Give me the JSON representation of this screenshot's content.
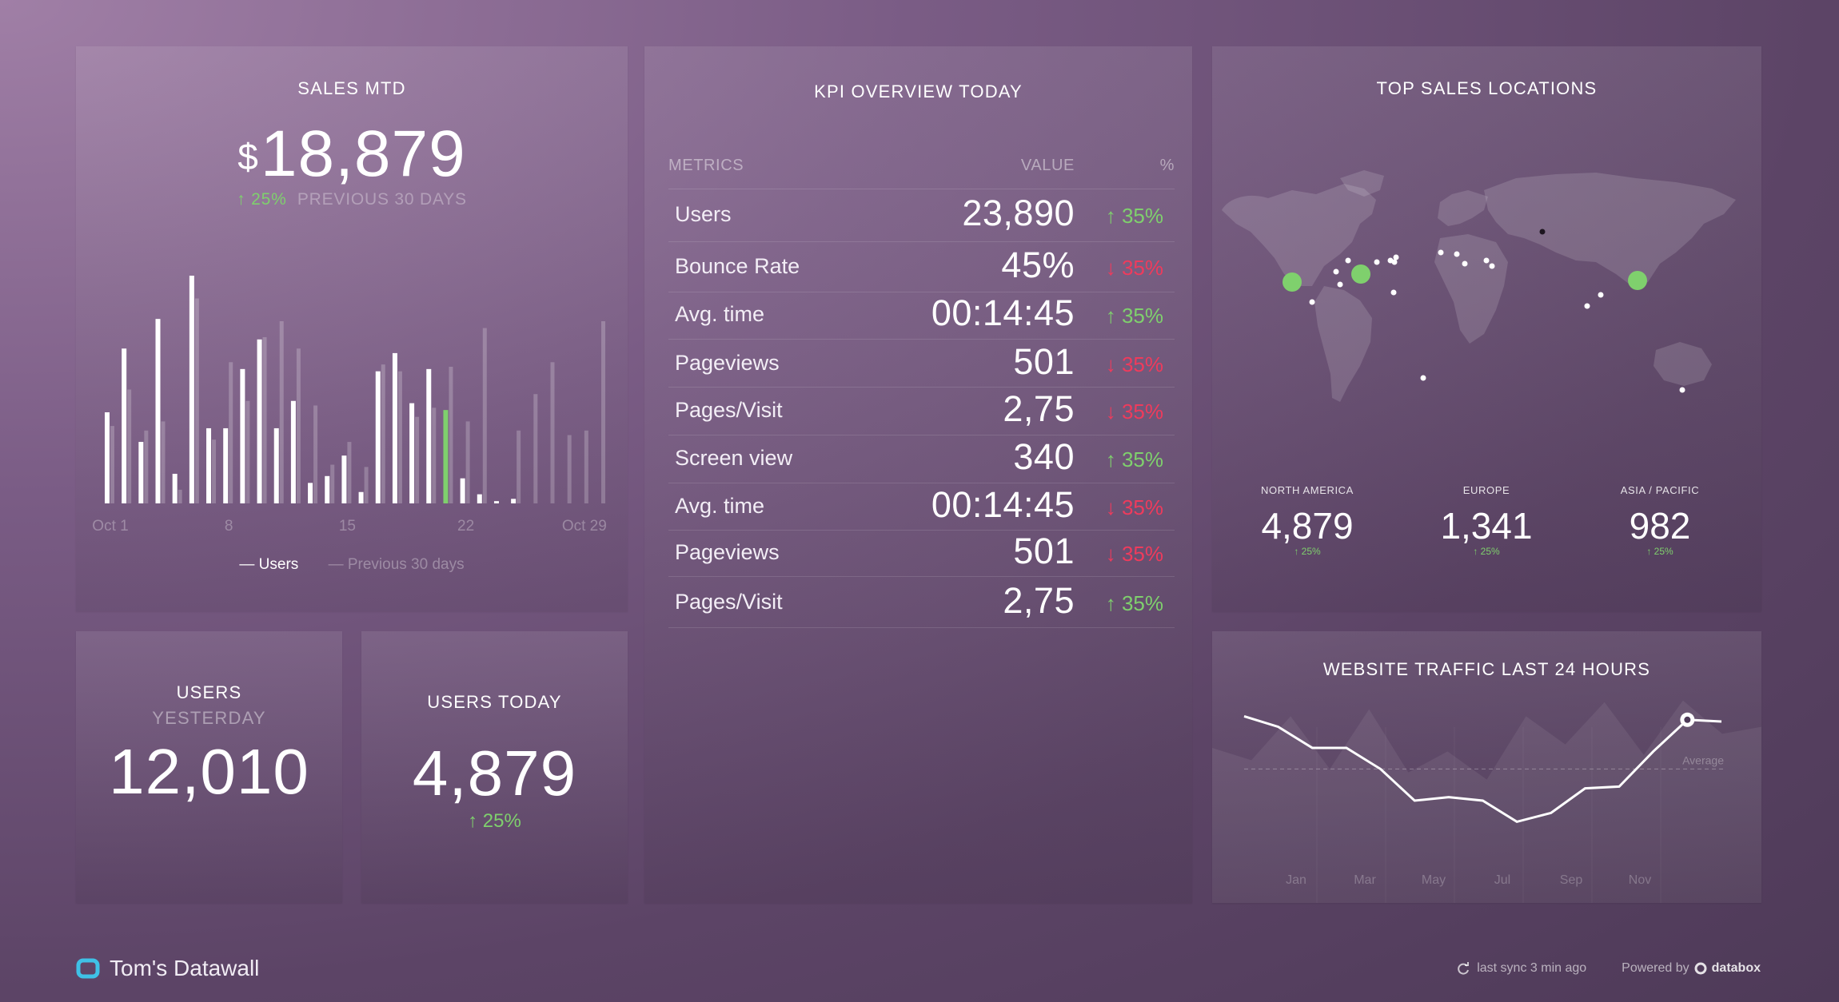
{
  "sales": {
    "title": "SALES MTD",
    "currency": "$",
    "value": "18,879",
    "change": "↑ 25%",
    "compare_label": "PREVIOUS 30 DAYS",
    "legend_users": "— Users",
    "legend_prev": "— Previous 30 days"
  },
  "kpi": {
    "title": "KPI OVERVIEW TODAY",
    "col_metrics": "METRICS",
    "col_value": "VALUE",
    "col_pct": "%",
    "rows": [
      {
        "label": "Users",
        "value": "23,890",
        "change": "↑ 35%",
        "trend": "up"
      },
      {
        "label": "Bounce Rate",
        "value": "45%",
        "change": "↓ 35%",
        "trend": "down"
      },
      {
        "label": "Avg. time",
        "value": "00:14:45",
        "change": "↑ 35%",
        "trend": "up"
      },
      {
        "label": "Pageviews",
        "value": "501",
        "change": "↓ 35%",
        "trend": "down"
      },
      {
        "label": "Pages/Visit",
        "value": "2,75",
        "change": "↓ 35%",
        "trend": "down"
      },
      {
        "label": "Screen view",
        "value": "340",
        "change": "↑ 35%",
        "trend": "up"
      },
      {
        "label": "Avg. time",
        "value": "00:14:45",
        "change": "↓ 35%",
        "trend": "down"
      },
      {
        "label": "Pageviews",
        "value": "501",
        "change": "↓ 35%",
        "trend": "down"
      },
      {
        "label": "Pages/Visit",
        "value": "2,75",
        "change": "↑ 35%",
        "trend": "up"
      }
    ]
  },
  "locations": {
    "title": "TOP SALES LOCATIONS",
    "regions": [
      {
        "name": "NORTH AMERICA",
        "value": "4,879",
        "change": "↑ 25%"
      },
      {
        "name": "EUROPE",
        "value": "1,341",
        "change": "↑ 25%"
      },
      {
        "name": "ASIA / PACIFIC",
        "value": "982",
        "change": "↑ 25%"
      }
    ]
  },
  "users_yesterday": {
    "title_1": "USERS",
    "title_2": "YESTERDAY",
    "value": "12,010"
  },
  "users_today": {
    "title": "USERS TODAY",
    "value": "4,879",
    "change": "↑ 25%"
  },
  "traffic": {
    "title": "WEBSITE TRAFFIC LAST 24 HOURS",
    "average_label": "Average"
  },
  "footer": {
    "brand": "Tom's Datawall",
    "sync": "last sync 3 min ago",
    "powered": "Powered by",
    "vendor": "databox"
  },
  "colors": {
    "green": "#7fd06d",
    "red": "#ef3b5c",
    "bar_highlight": "#7fd06d"
  },
  "chart_data": [
    {
      "type": "bar",
      "title": "SALES MTD",
      "x_tick_labels": [
        "Oct 1",
        "8",
        "15",
        "22",
        "Oct 29"
      ],
      "ylim": [
        0,
        100
      ],
      "series": [
        {
          "name": "Users",
          "values": [
            40,
            68,
            27,
            81,
            13,
            100,
            33,
            33,
            59,
            72,
            33,
            45,
            9,
            12,
            21,
            5,
            58,
            66,
            44,
            59,
            41,
            11,
            4,
            1,
            2,
            0,
            0,
            0,
            0,
            0
          ]
        },
        {
          "name": "Previous 30 days",
          "values": [
            34,
            50,
            32,
            36,
            6,
            90,
            28,
            62,
            45,
            73,
            80,
            68,
            43,
            17,
            27,
            16,
            61,
            58,
            38,
            42,
            60,
            36,
            77,
            0,
            32,
            48,
            62,
            30,
            32,
            80
          ]
        }
      ],
      "highlight_index": 20,
      "highlight_color": "#7fd06d"
    },
    {
      "type": "line",
      "title": "WEBSITE TRAFFIC LAST 24 HOURS",
      "x_tick_labels": [
        "Jan",
        "Mar",
        "May",
        "Jul",
        "Sep",
        "Nov"
      ],
      "ylim": [
        0,
        100
      ],
      "average": 58,
      "series": [
        {
          "name": "current",
          "values": [
            88,
            82,
            70,
            70,
            58,
            40,
            42,
            40,
            28,
            33,
            47,
            48,
            68,
            86,
            85
          ]
        },
        {
          "name": "previous",
          "values": [
            70,
            63,
            88,
            58,
            92,
            56,
            68,
            52,
            88,
            72,
            96,
            66,
            97,
            78,
            82
          ]
        }
      ]
    }
  ]
}
